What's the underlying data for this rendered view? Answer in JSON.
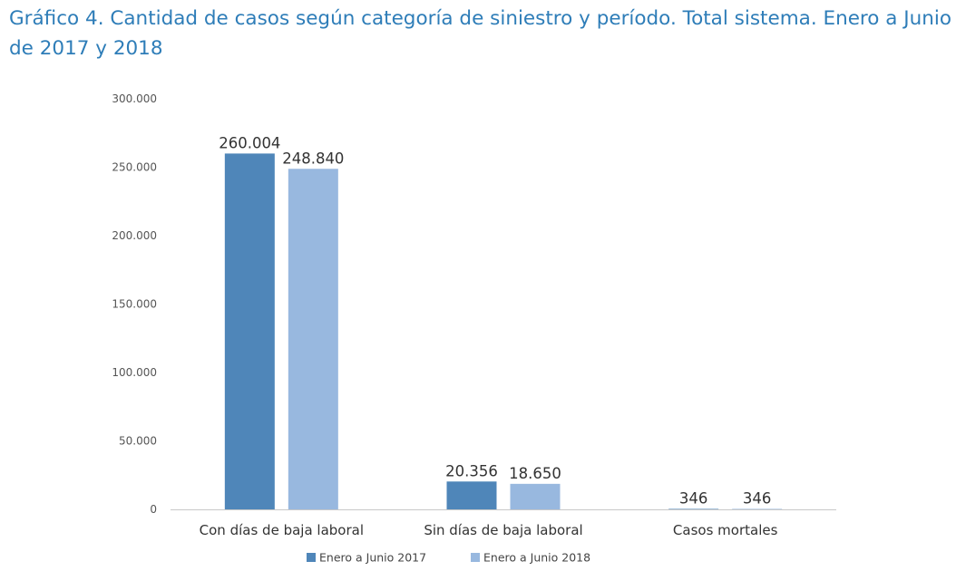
{
  "title_lines": [
    "Gráfico 4. Cantidad de casos según categoría de siniestro y período. Total sistema. Enero a Junio",
    "de 2017 y 2018"
  ],
  "colors": {
    "title": "#2E7DB8",
    "series_2017": "#4F86B9",
    "series_2018": "#98B8DF",
    "axis": "#C8C8C8"
  },
  "chart_data": {
    "type": "bar",
    "title": "Gráfico 4. Cantidad de casos según categoría de siniestro y período. Total sistema. Enero a Junio de 2017 y 2018",
    "xlabel": "",
    "ylabel": "",
    "ylim": [
      0,
      300000
    ],
    "yticks": [
      0,
      50000,
      100000,
      150000,
      200000,
      250000,
      300000
    ],
    "ytick_labels": [
      "0",
      "50.000",
      "100.000",
      "150.000",
      "200.000",
      "250.000",
      "300.000"
    ],
    "categories": [
      "Con días de baja laboral",
      "Sin días de baja laboral",
      "Casos mortales"
    ],
    "series": [
      {
        "name": "Enero a Junio 2017",
        "values": [
          260004,
          20356,
          346
        ],
        "labels": [
          "260.004",
          "20.356",
          "346"
        ]
      },
      {
        "name": "Enero a Junio 2018",
        "values": [
          248840,
          18650,
          346
        ],
        "labels": [
          "248.840",
          "18.650",
          "346"
        ]
      }
    ],
    "grid": false,
    "legend_position": "bottom"
  }
}
